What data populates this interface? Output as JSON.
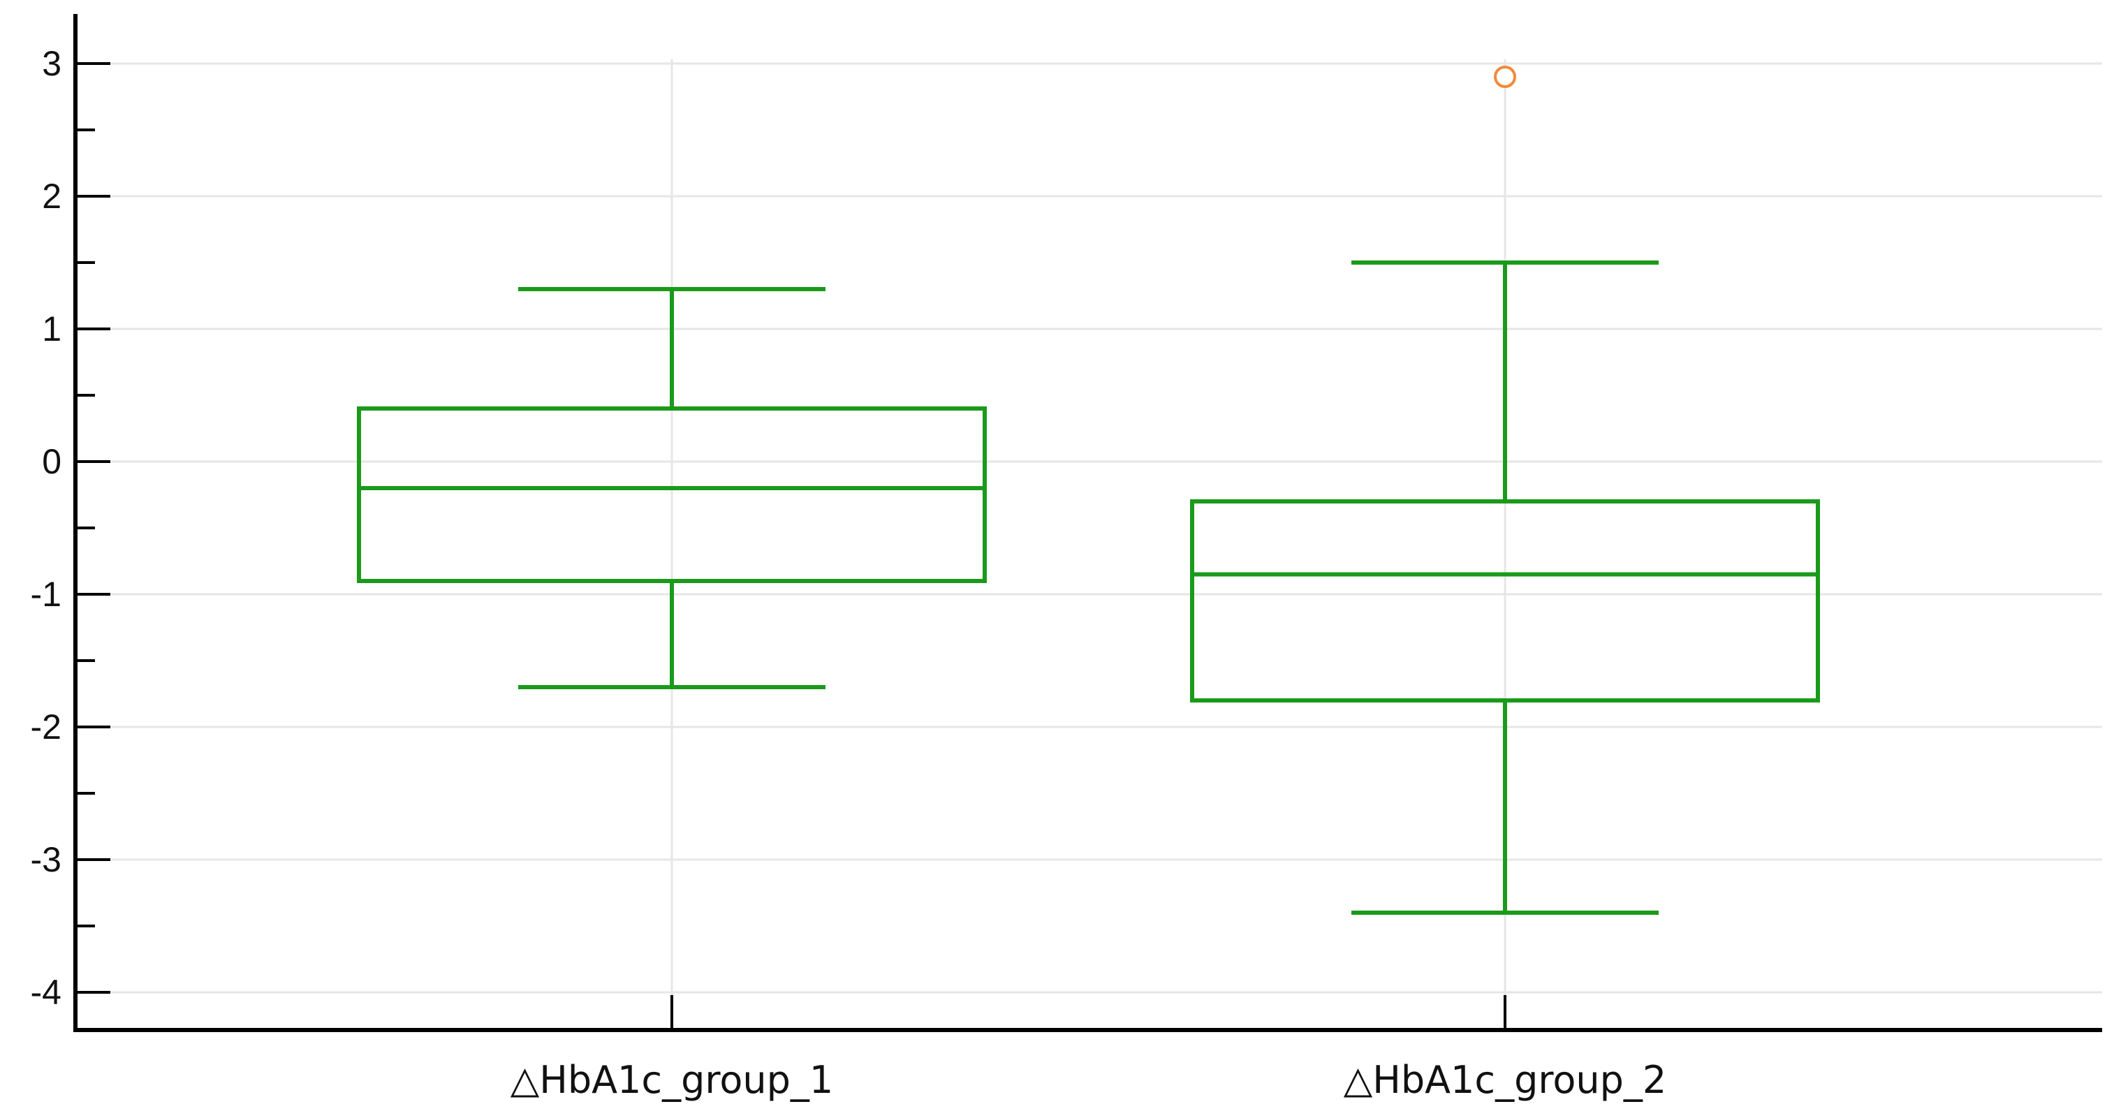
{
  "chart_data": {
    "type": "boxplot",
    "categories": [
      "△HbA1c_group_1",
      "△HbA1c_group_2"
    ],
    "boxes": [
      {
        "category": "△HbA1c_group_1",
        "whisker_low": -1.7,
        "q1": -0.9,
        "median": -0.2,
        "q3": 0.4,
        "whisker_high": 1.3,
        "outliers": []
      },
      {
        "category": "△HbA1c_group_2",
        "whisker_low": -3.4,
        "q1": -1.8,
        "median": -0.85,
        "q3": -0.3,
        "whisker_high": 1.5,
        "outliers": [
          2.9
        ]
      }
    ],
    "yticks": [
      "3",
      "2",
      "1",
      "0",
      "-1",
      "-2",
      "-3",
      "-4"
    ],
    "ylim": [
      -4.3,
      3.3
    ],
    "grid": true,
    "title": "",
    "xlabel": "",
    "ylabel": "",
    "colors": {
      "box": "#1a9a1a",
      "outlier": "#f08a3c",
      "grid": "#e6e6e6",
      "axis": "#000000"
    }
  }
}
